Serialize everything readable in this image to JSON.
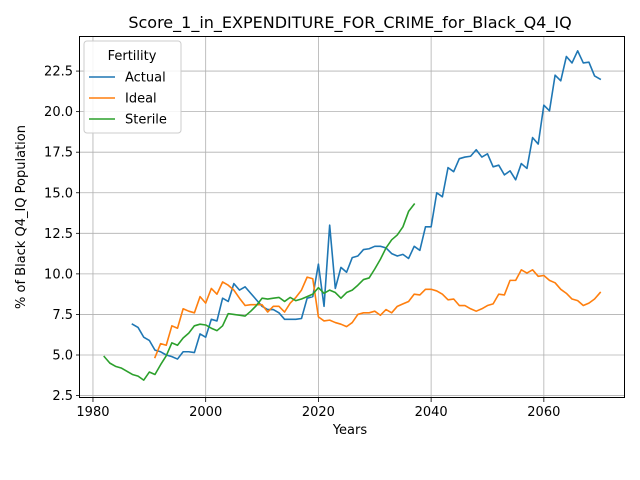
{
  "chart_data": {
    "type": "line",
    "title": "Score_1_in_EXPENDITURE_FOR_CRIME_for_Black_Q4_IQ",
    "xlabel": "Years",
    "ylabel": "% of Black Q4_IQ Population",
    "xlim": [
      1978.4,
      1974.4
    ],
    "ylim": [
      2.35,
      24.6
    ],
    "xticks": [
      1980,
      2000,
      2020,
      2040,
      2060
    ],
    "yticks": [
      2.5,
      5.0,
      7.5,
      10.0,
      12.5,
      15.0,
      17.5,
      20.0,
      22.5
    ],
    "ytick_labels": [
      "2.5",
      "5.0",
      "7.5",
      "10.0",
      "12.5",
      "15.0",
      "17.5",
      "20.0",
      "22.5"
    ],
    "grid": true,
    "legend": {
      "title": "Fertility",
      "placement": "top-left"
    },
    "series": [
      {
        "name": "Actual",
        "color": "#1f77b4",
        "x": [
          1987,
          1988,
          1989,
          1990,
          1991,
          1992,
          1993,
          1994,
          1995,
          1996,
          1997,
          1998,
          1999,
          2000,
          2001,
          2002,
          2003,
          2004,
          2005,
          2006,
          2007,
          2008,
          2009,
          2010,
          2011,
          2012,
          2013,
          2014,
          2015,
          2016,
          2017,
          2018,
          2019,
          2020,
          2021,
          2022,
          2023,
          2024,
          2025,
          2026,
          2027,
          2028,
          2029,
          2030,
          2031,
          2032,
          2033,
          2034,
          2035,
          2036,
          2037,
          2038,
          2039,
          2040,
          2041,
          2042,
          2043,
          2044,
          2045,
          2046,
          2047,
          2048,
          2049,
          2050,
          2051,
          2052,
          2053,
          2054,
          2055,
          2056,
          2057,
          2058,
          2059,
          2060,
          2061,
          2062,
          2063,
          2064,
          2065,
          2066,
          2067,
          2068,
          2069,
          2070
        ],
        "values": [
          6.9,
          6.7,
          6.1,
          5.9,
          5.3,
          5.2,
          5.0,
          4.9,
          4.75,
          5.2,
          5.2,
          5.15,
          6.3,
          6.1,
          7.2,
          7.1,
          8.5,
          8.3,
          9.4,
          9.0,
          9.2,
          8.8,
          8.4,
          8.0,
          7.8,
          7.8,
          7.6,
          7.2,
          7.2,
          7.2,
          7.25,
          8.5,
          8.6,
          10.6,
          8.0,
          13.0,
          9.1,
          10.4,
          10.1,
          11.0,
          11.1,
          11.5,
          11.55,
          11.7,
          11.7,
          11.6,
          11.25,
          11.1,
          11.2,
          10.95,
          11.7,
          11.45,
          12.9,
          12.9,
          15.0,
          14.75,
          16.55,
          16.3,
          17.1,
          17.2,
          17.25,
          17.65,
          17.2,
          17.4,
          16.6,
          16.7,
          16.1,
          16.35,
          15.8,
          16.8,
          16.5,
          18.4,
          18.0,
          20.4,
          20.05,
          22.25,
          21.9,
          23.4,
          23.0,
          23.75,
          23.0,
          23.05,
          22.2,
          22.0
        ]
      },
      {
        "name": "Ideal",
        "color": "#ff7f0e",
        "x": [
          1991,
          1992,
          1993,
          1994,
          1995,
          1996,
          1997,
          1998,
          1999,
          2000,
          2001,
          2002,
          2003,
          2004,
          2005,
          2006,
          2007,
          2008,
          2009,
          2010,
          2011,
          2012,
          2013,
          2014,
          2015,
          2016,
          2017,
          2018,
          2019,
          2020,
          2021,
          2022,
          2023,
          2024,
          2025,
          2026,
          2027,
          2028,
          2029,
          2030,
          2031,
          2032,
          2033,
          2034,
          2035,
          2036,
          2037,
          2038,
          2039,
          2040,
          2041,
          2042,
          2043,
          2044,
          2045,
          2046,
          2047,
          2048,
          2049,
          2050,
          2051,
          2052,
          2053,
          2054,
          2055,
          2056,
          2057,
          2058,
          2059,
          2060,
          2061,
          2062,
          2063,
          2064,
          2065,
          2066,
          2067,
          2068,
          2069,
          2070
        ],
        "values": [
          4.85,
          5.7,
          5.6,
          6.8,
          6.65,
          7.85,
          7.7,
          7.6,
          8.6,
          8.2,
          9.1,
          8.75,
          9.5,
          9.3,
          9.0,
          8.5,
          8.05,
          8.1,
          8.1,
          8.1,
          7.65,
          8.0,
          8.0,
          7.65,
          8.2,
          8.55,
          9.0,
          9.8,
          9.7,
          7.35,
          7.1,
          7.15,
          7.0,
          6.9,
          6.75,
          7.0,
          7.5,
          7.6,
          7.6,
          7.7,
          7.45,
          7.8,
          7.6,
          8.0,
          8.15,
          8.3,
          8.75,
          8.7,
          9.05,
          9.05,
          8.95,
          8.75,
          8.4,
          8.45,
          8.05,
          8.05,
          7.85,
          7.7,
          7.85,
          8.05,
          8.15,
          8.75,
          8.7,
          9.6,
          9.6,
          10.25,
          10.05,
          10.25,
          9.85,
          9.9,
          9.6,
          9.45,
          9.05,
          8.8,
          8.45,
          8.35,
          8.05,
          8.2,
          8.45,
          8.85
        ]
      },
      {
        "name": "Sterile",
        "color": "#2ca02c",
        "x": [
          1982,
          1983,
          1984,
          1985,
          1986,
          1987,
          1988,
          1989,
          1990,
          1991,
          1992,
          1993,
          1994,
          1995,
          1996,
          1997,
          1998,
          1999,
          2000,
          2001,
          2002,
          2003,
          2004,
          2005,
          2006,
          2007,
          2008,
          2009,
          2010,
          2011,
          2012,
          2013,
          2014,
          2015,
          2016,
          2017,
          2018,
          2019,
          2020,
          2021,
          2022,
          2023,
          2024,
          2025,
          2026,
          2027,
          2028,
          2029,
          2030,
          2031,
          2032,
          2033,
          2034,
          2035,
          2036,
          2037
        ],
        "values": [
          4.9,
          4.5,
          4.3,
          4.2,
          4.0,
          3.8,
          3.7,
          3.45,
          3.95,
          3.8,
          4.4,
          4.95,
          5.75,
          5.6,
          6.05,
          6.35,
          6.8,
          6.9,
          6.85,
          6.65,
          6.5,
          6.8,
          7.55,
          7.5,
          7.45,
          7.4,
          7.7,
          8.05,
          8.5,
          8.45,
          8.5,
          8.55,
          8.3,
          8.55,
          8.35,
          8.45,
          8.6,
          8.75,
          9.15,
          8.8,
          9.0,
          8.85,
          8.5,
          8.85,
          9.0,
          9.3,
          9.65,
          9.75,
          10.3,
          10.9,
          11.6,
          12.1,
          12.4,
          12.9,
          13.85,
          14.3
        ]
      }
    ]
  }
}
